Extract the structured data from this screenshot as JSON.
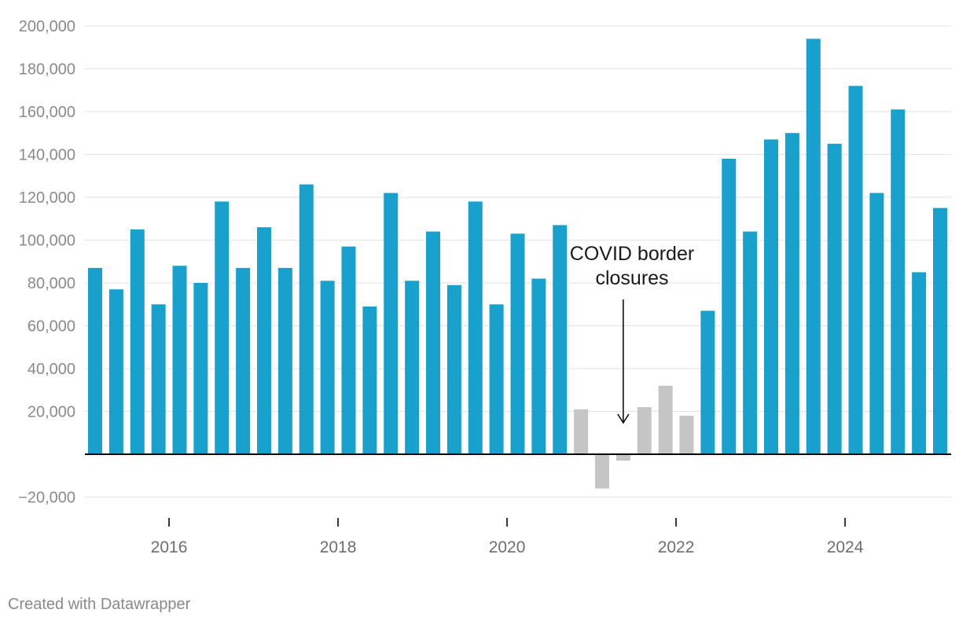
{
  "chart_data": {
    "type": "bar",
    "title": "",
    "xlabel": "",
    "ylabel": "",
    "ylim": [
      -20000,
      200000
    ],
    "y_ticks": [
      200000,
      180000,
      160000,
      140000,
      120000,
      100000,
      80000,
      60000,
      40000,
      20000,
      0,
      -20000
    ],
    "y_tick_labels": [
      "200,000",
      "180,000",
      "160,000",
      "140,000",
      "120,000",
      "100,000",
      "80,000",
      "60,000",
      "40,000",
      "20,000",
      "",
      "−20,000"
    ],
    "x_tick_labels": [
      "2016",
      "2018",
      "2020",
      "2022",
      "2024"
    ],
    "x_tick_years": [
      2016,
      2018,
      2020,
      2022,
      2024
    ],
    "grid": true,
    "colors": {
      "normal": "#18a1cd",
      "covid": "#c5c5c5",
      "grid": "#e2e2e2",
      "axis": "#000000"
    },
    "series": [
      {
        "name": "Quarterly values",
        "x": [
          "2015 Q1",
          "2015 Q2",
          "2015 Q3",
          "2015 Q4",
          "2016 Q1",
          "2016 Q2",
          "2016 Q3",
          "2016 Q4",
          "2017 Q1",
          "2017 Q2",
          "2017 Q3",
          "2017 Q4",
          "2018 Q1",
          "2018 Q2",
          "2018 Q3",
          "2018 Q4",
          "2019 Q1",
          "2019 Q2",
          "2019 Q3",
          "2019 Q4",
          "2020 Q1",
          "2020 Q2",
          "2020 Q3",
          "2020 Q4",
          "2021 Q1",
          "2021 Q2",
          "2021 Q3",
          "2021 Q4",
          "2022 Q1",
          "2022 Q2",
          "2022 Q3",
          "2022 Q4",
          "2023 Q1",
          "2023 Q2",
          "2023 Q3",
          "2023 Q4",
          "2024 Q1",
          "2024 Q2",
          "2024 Q3",
          "2024 Q4",
          "2025 Q1"
        ],
        "values": [
          87000,
          77000,
          105000,
          70000,
          88000,
          80000,
          118000,
          87000,
          106000,
          87000,
          126000,
          81000,
          97000,
          69000,
          122000,
          81000,
          104000,
          79000,
          118000,
          70000,
          103000,
          82000,
          107000,
          21000,
          -16000,
          -3000,
          22000,
          32000,
          18000,
          67000,
          138000,
          104000,
          147000,
          150000,
          194000,
          145000,
          172000,
          122000,
          161000,
          85000,
          115000
        ],
        "covid_period": [
          false,
          false,
          false,
          false,
          false,
          false,
          false,
          false,
          false,
          false,
          false,
          false,
          false,
          false,
          false,
          false,
          false,
          false,
          false,
          false,
          false,
          false,
          false,
          true,
          true,
          true,
          true,
          true,
          true,
          false,
          false,
          false,
          false,
          false,
          false,
          false,
          false,
          false,
          false,
          false,
          false
        ]
      }
    ],
    "annotations": [
      {
        "text_lines": [
          "COVID border",
          "closures"
        ],
        "points_to": "2021 Q2"
      }
    ]
  },
  "credit": "Created with Datawrapper"
}
